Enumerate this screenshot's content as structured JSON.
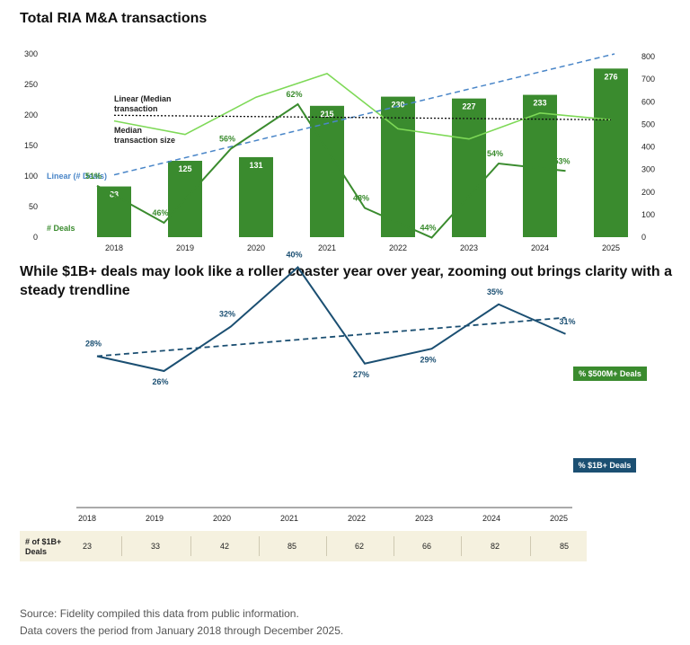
{
  "header": {
    "title": "Total RIA M&A transactions",
    "subtitle": "While $1B+ deals may look like a roller coaster year over year, zooming out brings clarity with a steady trendline"
  },
  "chart_data": [
    {
      "type": "bar",
      "title": "Total RIA M&A transactions",
      "categories": [
        "2018",
        "2019",
        "2020",
        "2021",
        "2022",
        "2023",
        "2024",
        "2025"
      ],
      "series": [
        {
          "name": "# Deals",
          "values": [
            83,
            125,
            131,
            215,
            230,
            227,
            233,
            276
          ],
          "axis": "left",
          "color": "#3a8b2e"
        },
        {
          "name": "Median transaction size",
          "values": [
            515,
            455,
            620,
            725,
            480,
            435,
            550,
            520
          ],
          "axis": "right",
          "type": "line",
          "color": "#7ed957"
        }
      ],
      "trendlines": [
        {
          "name": "Linear (# Deals)",
          "start": 102,
          "end": 300,
          "axis": "left",
          "color": "#4a86c8",
          "style": "dashed"
        },
        {
          "name": "Linear (Median transaction",
          "note_line2": "transaction",
          "start": 540,
          "end": 520,
          "axis": "right",
          "color": "#111111",
          "style": "dotted"
        }
      ],
      "left_axis": {
        "ticks": [
          "0",
          "50",
          "100",
          "150",
          "200",
          "250",
          "300"
        ],
        "range": [
          0,
          300
        ]
      },
      "right_axis": {
        "ticks": [
          "0",
          "100",
          "200",
          "300",
          "400",
          "500",
          "600",
          "700",
          "800"
        ],
        "range": [
          0,
          800
        ]
      },
      "annotations": {
        "linear_median_l1": "Linear (Median",
        "linear_median_l2": "transaction",
        "median_l1": "Median",
        "median_l2": "transaction size",
        "linear_deals": "Linear (# Deals)",
        "deals": "# Deals"
      }
    },
    {
      "type": "line",
      "categories": [
        "2018",
        "2019",
        "2020",
        "2021",
        "2022",
        "2023",
        "2024",
        "2025"
      ],
      "series": [
        {
          "name": "% $500M+ Deals",
          "values": [
            51,
            46,
            56,
            62,
            48,
            44,
            54,
            53
          ],
          "labels": [
            "51%",
            "46%",
            "56%",
            "62%",
            "48%",
            "44%",
            "54%",
            "53%"
          ],
          "color": "#3a8b2e"
        },
        {
          "name": "% $1B+ Deals",
          "values": [
            28,
            26,
            32,
            40,
            27,
            29,
            35,
            31
          ],
          "labels": [
            "28%",
            "26%",
            "32%",
            "40%",
            "27%",
            "29%",
            "35%",
            "31%"
          ],
          "color": "#1b4f72"
        }
      ],
      "trendline": {
        "series": "% $1B+ Deals",
        "start": 28,
        "end": 33.2,
        "style": "dashed",
        "color": "#1b4f72"
      },
      "y_range": [
        20,
        70
      ],
      "grid": false
    }
  ],
  "table": {
    "row_label": "# of $1B+ Deals",
    "values": [
      "23",
      "33",
      "42",
      "85",
      "62",
      "66",
      "82",
      "85"
    ]
  },
  "footer": {
    "source": "Source: Fidelity compiled this data from public information.",
    "period": "Data covers the period from January 2018 through December 2025."
  }
}
